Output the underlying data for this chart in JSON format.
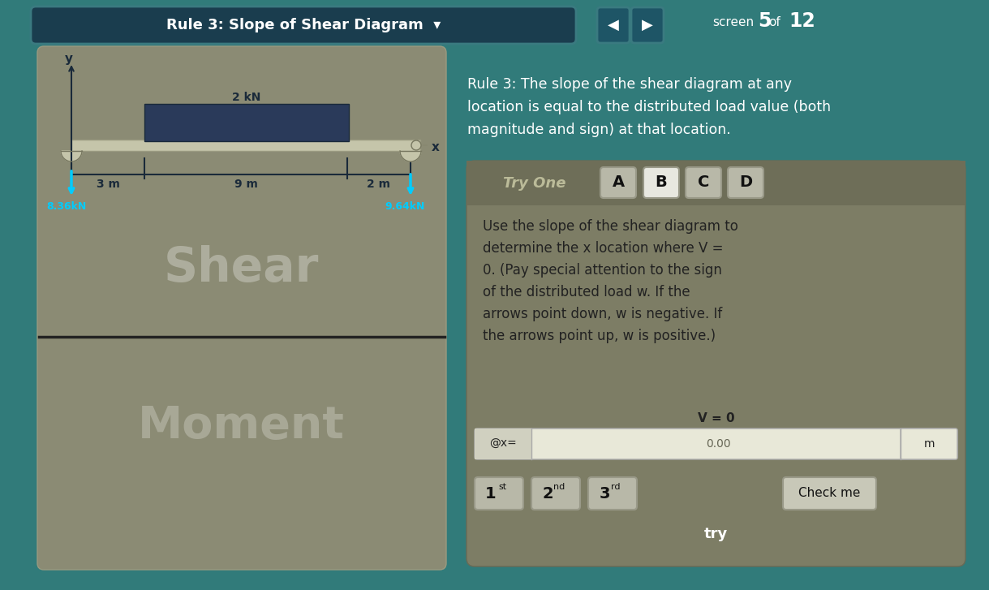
{
  "bg_color": "#317b7a",
  "title_bar_color": "#1a3d4e",
  "title_text": "Rule 3: Slope of Shear Diagram  ▾",
  "nav_btn_color": "#1e5566",
  "left_panel_bg": "#8b8b74",
  "left_panel_top_bg": "#8b8b74",
  "left_panel_bottom_bg": "#7a7a63",
  "beam_color": "#c5c5aa",
  "beam_border_color": "#9a9a80",
  "beam_load_color": "#2a3a5a",
  "load_label": "2 kN",
  "dim_3m": "3 m",
  "dim_9m": "9 m",
  "dim_2m": "2 m",
  "react_left": "8.36kN",
  "react_right": "9.64kN",
  "shear_text": "Shear",
  "moment_text": "Moment",
  "rule_text_line1": "Rule 3: The slope of the shear diagram at any",
  "rule_text_line2": "location is equal to the distributed load value (both",
  "rule_text_line3": "magnitude and sign) at that location.",
  "try_one_text": "Try One",
  "btn_A": "A",
  "btn_B": "B",
  "btn_C": "C",
  "btn_D": "D",
  "body_text_lines": [
    "Use the slope of the shear diagram to",
    "determine the x location where V =",
    "0. (Pay special attention to the sign",
    "of the distributed load w. If the",
    "arrows point down, w is negative. If",
    "the arrows point up, w is positive.)"
  ],
  "v0_label": "V = 0",
  "at_x_label": "@x=",
  "input_val": "0.00",
  "m_label": "m",
  "btn_1st": "1",
  "btn_1st_sup": "st",
  "btn_2nd": "2",
  "btn_2nd_sup": "nd",
  "btn_3rd": "3",
  "btn_3rd_sup": "rd",
  "btn_check": "Check me",
  "btn_try": "try",
  "cyan_color": "#00ccff",
  "dark_navy": "#1a2a3a",
  "white": "#ffffff",
  "black": "#111111",
  "dark_text": "#222222",
  "panel_card_bg": "#7d7d65",
  "panel_card_border": "#6a6a55",
  "input_bg": "#e8e8d8",
  "input_border": "#aaaaaa",
  "btn_light_bg": "#b8b8a8",
  "btn_B_bg": "#e8e8e0",
  "btn_check_bg": "#c8c8b8",
  "try_label_color": "#a8a890",
  "screen_5_text": "5",
  "screen_12_text": "12"
}
